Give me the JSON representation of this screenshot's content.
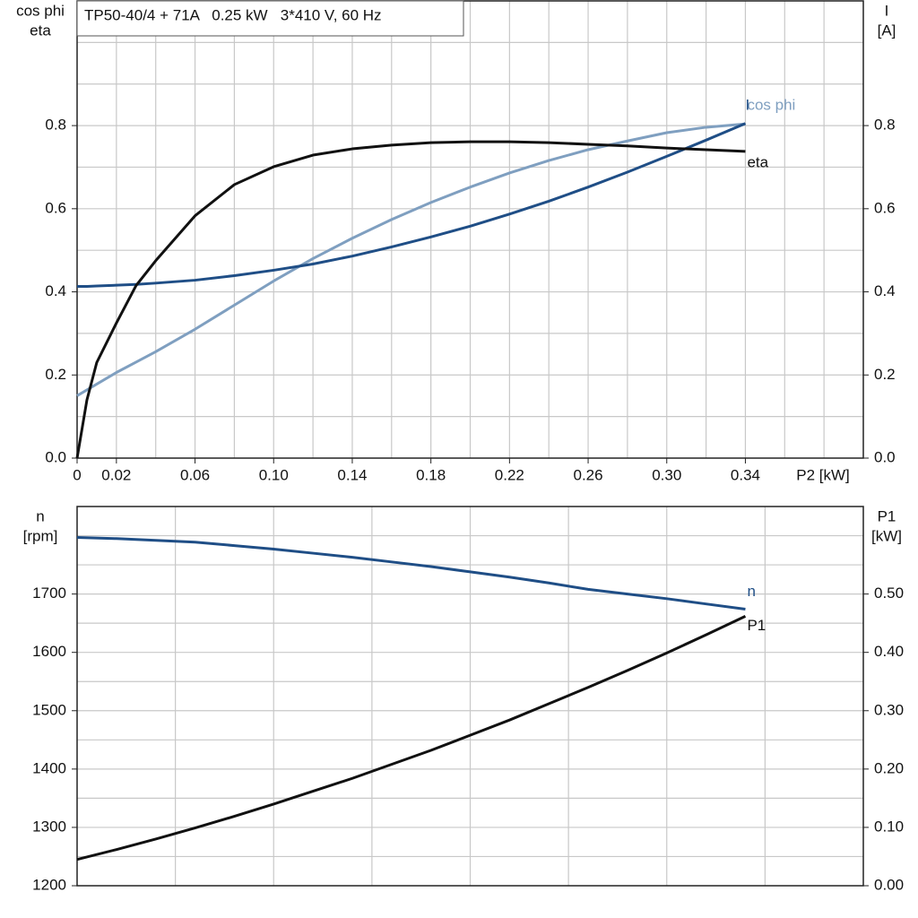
{
  "chart_data": [
    {
      "type": "line",
      "title": "TP50-40/4 + 71A   0.25 kW   3*410 V, 60 Hz",
      "xlabel": "P2 [kW]",
      "ylabel": [
        "cos phi",
        "eta"
      ],
      "y2label": [
        "I",
        "[A]"
      ],
      "x": [
        0,
        0.005,
        0.01,
        0.02,
        0.03,
        0.04,
        0.06,
        0.08,
        0.1,
        0.12,
        0.14,
        0.16,
        0.18,
        0.2,
        0.22,
        0.24,
        0.26,
        0.28,
        0.3,
        0.32,
        0.34
      ],
      "series": [
        {
          "name": "cos phi",
          "color": "#7f9fc0",
          "values": [
            0.15,
            0.164,
            0.178,
            0.206,
            0.231,
            0.256,
            0.31,
            0.368,
            0.426,
            0.48,
            0.529,
            0.574,
            0.615,
            0.652,
            0.686,
            0.716,
            0.742,
            0.763,
            0.783,
            0.796,
            0.804
          ]
        },
        {
          "name": "I",
          "color": "#1f4e86",
          "axis": "y2",
          "values": [
            0.413,
            0.413,
            0.414,
            0.416,
            0.418,
            0.421,
            0.428,
            0.439,
            0.452,
            0.467,
            0.486,
            0.508,
            0.532,
            0.558,
            0.587,
            0.618,
            0.652,
            0.688,
            0.726,
            0.765,
            0.805
          ]
        },
        {
          "name": "eta",
          "color": "#111111",
          "values": [
            0,
            0.14,
            0.23,
            0.325,
            0.415,
            0.475,
            0.583,
            0.658,
            0.701,
            0.729,
            0.744,
            0.753,
            0.759,
            0.761,
            0.761,
            0.759,
            0.755,
            0.751,
            0.746,
            0.742,
            0.738
          ]
        }
      ],
      "xlim": [
        0,
        0.4
      ],
      "xticks": [
        0,
        0.02,
        0.06,
        {
          "value": 0.1,
          "label": "0.10"
        },
        0.14,
        0.18,
        0.22,
        0.26,
        {
          "value": 0.3,
          "label": "0.30"
        },
        0.34
      ],
      "xgrid": [
        0.02,
        0.04,
        0.06,
        0.08,
        0.1,
        0.12,
        0.14,
        0.16,
        0.18,
        0.2,
        0.22,
        0.24,
        0.26,
        0.28,
        0.3,
        0.32,
        0.34,
        0.36,
        0.38
      ],
      "ylim": [
        0,
        1.1
      ],
      "yticks": [
        {
          "value": 0,
          "label": "0.0"
        },
        0.2,
        0.4,
        0.6,
        0.8
      ],
      "ygrid": [
        0.1,
        0.2,
        0.3,
        0.4,
        0.5,
        0.6,
        0.7,
        0.8,
        0.9,
        1.0
      ],
      "y2lim": [
        0,
        1.1
      ],
      "y2ticks": [
        {
          "value": 0,
          "label": "0.0"
        },
        0.2,
        0.4,
        0.6,
        0.8
      ],
      "grid": true
    },
    {
      "type": "line",
      "ylabel": [
        "n",
        "[rpm]"
      ],
      "y2label": [
        "P1",
        "[kW]"
      ],
      "x": [
        0,
        0.02,
        0.04,
        0.06,
        0.08,
        0.1,
        0.12,
        0.14,
        0.16,
        0.18,
        0.2,
        0.22,
        0.24,
        0.26,
        0.28,
        0.3,
        0.32,
        0.34
      ],
      "series": [
        {
          "name": "n",
          "color": "#1f4e86",
          "values": [
            1797,
            1795,
            1792,
            1789,
            1783,
            1777,
            1770,
            1763,
            1755,
            1747,
            1738,
            1729,
            1719,
            1708,
            1700,
            1692,
            1683,
            1674
          ]
        },
        {
          "name": "P1",
          "color": "#111111",
          "axis": "y2",
          "values": [
            0.045,
            0.062,
            0.08,
            0.099,
            0.119,
            0.14,
            0.162,
            0.184,
            0.208,
            0.232,
            0.258,
            0.284,
            0.312,
            0.34,
            0.369,
            0.399,
            0.43,
            0.462
          ]
        }
      ],
      "xlim": [
        0,
        0.4
      ],
      "xgrid": [
        0.05,
        0.1,
        0.15,
        0.2,
        0.25,
        0.3,
        0.35
      ],
      "ylim": [
        1200,
        1850
      ],
      "yticks": [
        1200,
        1300,
        1400,
        1500,
        1600,
        1700
      ],
      "ygrid": [
        1250,
        1300,
        1350,
        1400,
        1450,
        1500,
        1550,
        1600,
        1650,
        1700,
        1750,
        1800
      ],
      "y2lim": [
        0,
        0.65
      ],
      "y2ticks": [
        {
          "value": 0,
          "label": "0.00"
        },
        {
          "value": 0.1,
          "label": "0.10"
        },
        {
          "value": 0.2,
          "label": "0.20"
        },
        {
          "value": 0.3,
          "label": "0.30"
        },
        {
          "value": 0.4,
          "label": "0.40"
        },
        {
          "value": 0.5,
          "label": "0.50"
        }
      ],
      "grid": true
    }
  ]
}
